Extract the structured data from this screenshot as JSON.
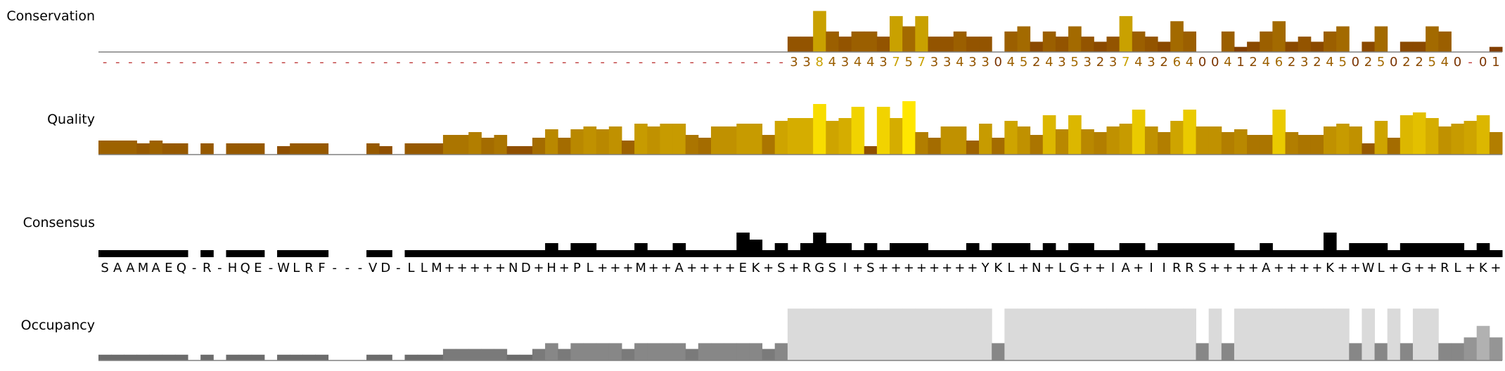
{
  "rows": {
    "conservation_label": "Conservation",
    "quality_label": "Quality",
    "consensus_label": "Consensus",
    "occupancy_label": "Occupancy"
  },
  "colors": {
    "conservation_low": "#7a3300",
    "conservation_mid": "#a36a00",
    "conservation_high": "#c9a100",
    "quality_low": "#7a3300",
    "quality_high": "#ffe600",
    "conservation_dash": "#c04040",
    "consensus_bar": "#000000",
    "occupancy_dark": "#5e5e5e",
    "occupancy_light": "#dadada",
    "baseline": "#808080"
  },
  "columns": [
    {
      "c": "-",
      "s": "S",
      "q": 5,
      "cons": 2,
      "o": 2
    },
    {
      "c": "-",
      "s": "A",
      "q": 5,
      "cons": 2,
      "o": 2
    },
    {
      "c": "-",
      "s": "A",
      "q": 5,
      "cons": 2,
      "o": 2
    },
    {
      "c": "-",
      "s": "M",
      "q": 4,
      "cons": 2,
      "o": 2
    },
    {
      "c": "-",
      "s": "A",
      "q": 5,
      "cons": 2,
      "o": 2
    },
    {
      "c": "-",
      "s": "E",
      "q": 4,
      "cons": 2,
      "o": 2
    },
    {
      "c": "-",
      "s": "Q",
      "q": 4,
      "cons": 2,
      "o": 2
    },
    {
      "c": "-",
      "s": "-",
      "q": 0,
      "cons": 0,
      "o": 0
    },
    {
      "c": "-",
      "s": "R",
      "q": 4,
      "cons": 2,
      "o": 2
    },
    {
      "c": "-",
      "s": "-",
      "q": 0,
      "cons": 0,
      "o": 0
    },
    {
      "c": "-",
      "s": "H",
      "q": 4,
      "cons": 2,
      "o": 2
    },
    {
      "c": "-",
      "s": "Q",
      "q": 4,
      "cons": 2,
      "o": 2
    },
    {
      "c": "-",
      "s": "E",
      "q": 4,
      "cons": 2,
      "o": 2
    },
    {
      "c": "-",
      "s": "-",
      "q": 0,
      "cons": 0,
      "o": 0
    },
    {
      "c": "-",
      "s": "W",
      "q": 3,
      "cons": 2,
      "o": 2
    },
    {
      "c": "-",
      "s": "L",
      "q": 4,
      "cons": 2,
      "o": 2
    },
    {
      "c": "-",
      "s": "R",
      "q": 4,
      "cons": 2,
      "o": 2
    },
    {
      "c": "-",
      "s": "F",
      "q": 4,
      "cons": 2,
      "o": 2
    },
    {
      "c": "-",
      "s": "-",
      "q": 0,
      "cons": 0,
      "o": 0
    },
    {
      "c": "-",
      "s": "-",
      "q": 0,
      "cons": 0,
      "o": 0
    },
    {
      "c": "-",
      "s": "-",
      "q": 0,
      "cons": 0,
      "o": 0
    },
    {
      "c": "-",
      "s": "V",
      "q": 4,
      "cons": 2,
      "o": 2
    },
    {
      "c": "-",
      "s": "D",
      "q": 3,
      "cons": 2,
      "o": 2
    },
    {
      "c": "-",
      "s": "-",
      "q": 0,
      "cons": 0,
      "o": 0
    },
    {
      "c": "-",
      "s": "L",
      "q": 4,
      "cons": 2,
      "o": 2
    },
    {
      "c": "-",
      "s": "L",
      "q": 4,
      "cons": 2,
      "o": 2
    },
    {
      "c": "-",
      "s": "M",
      "q": 4,
      "cons": 2,
      "o": 2
    },
    {
      "c": "-",
      "s": "+",
      "q": 7,
      "cons": 2,
      "o": 4
    },
    {
      "c": "-",
      "s": "+",
      "q": 7,
      "cons": 2,
      "o": 4
    },
    {
      "c": "-",
      "s": "+",
      "q": 8,
      "cons": 2,
      "o": 4
    },
    {
      "c": "-",
      "s": "+",
      "q": 6,
      "cons": 2,
      "o": 4
    },
    {
      "c": "-",
      "s": "+",
      "q": 7,
      "cons": 2,
      "o": 4
    },
    {
      "c": "-",
      "s": "N",
      "q": 3,
      "cons": 2,
      "o": 2
    },
    {
      "c": "-",
      "s": "D",
      "q": 3,
      "cons": 2,
      "o": 2
    },
    {
      "c": "-",
      "s": "+",
      "q": 6,
      "cons": 2,
      "o": 4
    },
    {
      "c": "-",
      "s": "H",
      "q": 9,
      "cons": 4,
      "o": 6
    },
    {
      "c": "-",
      "s": "+",
      "q": 6,
      "cons": 2,
      "o": 4
    },
    {
      "c": "-",
      "s": "P",
      "q": 9,
      "cons": 4,
      "o": 6
    },
    {
      "c": "-",
      "s": "L",
      "q": 10,
      "cons": 4,
      "o": 6
    },
    {
      "c": "-",
      "s": "+",
      "q": 9,
      "cons": 2,
      "o": 6
    },
    {
      "c": "-",
      "s": "+",
      "q": 10,
      "cons": 2,
      "o": 6
    },
    {
      "c": "-",
      "s": "+",
      "q": 5,
      "cons": 2,
      "o": 4
    },
    {
      "c": "-",
      "s": "M",
      "q": 11,
      "cons": 4,
      "o": 6
    },
    {
      "c": "-",
      "s": "+",
      "q": 10,
      "cons": 2,
      "o": 6
    },
    {
      "c": "-",
      "s": "+",
      "q": 11,
      "cons": 2,
      "o": 6
    },
    {
      "c": "-",
      "s": "A",
      "q": 11,
      "cons": 4,
      "o": 6
    },
    {
      "c": "-",
      "s": "+",
      "q": 7,
      "cons": 2,
      "o": 4
    },
    {
      "c": "-",
      "s": "+",
      "q": 6,
      "cons": 2,
      "o": 6
    },
    {
      "c": "-",
      "s": "+",
      "q": 10,
      "cons": 2,
      "o": 6
    },
    {
      "c": "-",
      "s": "+",
      "q": 10,
      "cons": 2,
      "o": 6
    },
    {
      "c": "-",
      "s": "E",
      "q": 11,
      "cons": 7,
      "o": 6
    },
    {
      "c": "-",
      "s": "K",
      "q": 11,
      "cons": 5,
      "o": 6
    },
    {
      "c": "-",
      "s": "+",
      "q": 7,
      "cons": 2,
      "o": 4
    },
    {
      "c": "-",
      "s": "S",
      "q": 12,
      "cons": 4,
      "o": 6
    },
    {
      "c": "3",
      "s": "+",
      "q": 13,
      "cons": 2,
      "o": 18
    },
    {
      "c": "3",
      "s": "R",
      "q": 13,
      "cons": 4,
      "o": 18
    },
    {
      "c": "8",
      "s": "G",
      "q": 18,
      "cons": 7,
      "o": 18
    },
    {
      "c": "4",
      "s": "S",
      "q": 12,
      "cons": 4,
      "o": 18
    },
    {
      "c": "3",
      "s": "I",
      "q": 13,
      "cons": 4,
      "o": 18
    },
    {
      "c": "4",
      "s": "+",
      "q": 17,
      "cons": 2,
      "o": 18
    },
    {
      "c": "4",
      "s": "S",
      "q": 3,
      "cons": 4,
      "o": 18
    },
    {
      "c": "3",
      "s": "+",
      "q": 17,
      "cons": 2,
      "o": 18
    },
    {
      "c": "7",
      "s": "+",
      "q": 13,
      "cons": 4,
      "o": 18
    },
    {
      "c": "5",
      "s": "+",
      "q": 19,
      "cons": 4,
      "o": 18
    },
    {
      "c": "7",
      "s": "+",
      "q": 8,
      "cons": 4,
      "o": 18
    },
    {
      "c": "3",
      "s": "+",
      "q": 6,
      "cons": 2,
      "o": 18
    },
    {
      "c": "3",
      "s": "+",
      "q": 10,
      "cons": 2,
      "o": 18
    },
    {
      "c": "4",
      "s": "+",
      "q": 10,
      "cons": 2,
      "o": 18
    },
    {
      "c": "3",
      "s": "+",
      "q": 5,
      "cons": 4,
      "o": 18
    },
    {
      "c": "3",
      "s": "Y",
      "q": 11,
      "cons": 2,
      "o": 18
    },
    {
      "c": "0",
      "s": "K",
      "q": 6,
      "cons": 4,
      "o": 6
    },
    {
      "c": "4",
      "s": "L",
      "q": 12,
      "cons": 4,
      "o": 18
    },
    {
      "c": "5",
      "s": "+",
      "q": 10,
      "cons": 4,
      "o": 18
    },
    {
      "c": "2",
      "s": "N",
      "q": 7,
      "cons": 2,
      "o": 18
    },
    {
      "c": "4",
      "s": "+",
      "q": 14,
      "cons": 4,
      "o": 18
    },
    {
      "c": "3",
      "s": "L",
      "q": 9,
      "cons": 2,
      "o": 18
    },
    {
      "c": "5",
      "s": "G",
      "q": 14,
      "cons": 4,
      "o": 18
    },
    {
      "c": "3",
      "s": "+",
      "q": 9,
      "cons": 4,
      "o": 18
    },
    {
      "c": "2",
      "s": "+",
      "q": 8,
      "cons": 2,
      "o": 18
    },
    {
      "c": "3",
      "s": "I",
      "q": 10,
      "cons": 2,
      "o": 18
    },
    {
      "c": "7",
      "s": "A",
      "q": 11,
      "cons": 4,
      "o": 18
    },
    {
      "c": "4",
      "s": "+",
      "q": 16,
      "cons": 4,
      "o": 18
    },
    {
      "c": "3",
      "s": "I",
      "q": 10,
      "cons": 2,
      "o": 18
    },
    {
      "c": "2",
      "s": "I",
      "q": 8,
      "cons": 4,
      "o": 18
    },
    {
      "c": "6",
      "s": "R",
      "q": 12,
      "cons": 4,
      "o": 18
    },
    {
      "c": "4",
      "s": "R",
      "q": 16,
      "cons": 4,
      "o": 18
    },
    {
      "c": "0",
      "s": "S",
      "q": 10,
      "cons": 4,
      "o": 6
    },
    {
      "c": "0",
      "s": "+",
      "q": 10,
      "cons": 4,
      "o": 18
    },
    {
      "c": "4",
      "s": "+",
      "q": 8,
      "cons": 4,
      "o": 6
    },
    {
      "c": "1",
      "s": "+",
      "q": 9,
      "cons": 2,
      "o": 18
    },
    {
      "c": "2",
      "s": "+",
      "q": 7,
      "cons": 2,
      "o": 18
    },
    {
      "c": "4",
      "s": "A",
      "q": 7,
      "cons": 4,
      "o": 18
    },
    {
      "c": "6",
      "s": "+",
      "q": 16,
      "cons": 2,
      "o": 18
    },
    {
      "c": "2",
      "s": "+",
      "q": 8,
      "cons": 2,
      "o": 18
    },
    {
      "c": "3",
      "s": "+",
      "q": 7,
      "cons": 2,
      "o": 18
    },
    {
      "c": "2",
      "s": "+",
      "q": 7,
      "cons": 2,
      "o": 18
    },
    {
      "c": "4",
      "s": "K",
      "q": 10,
      "cons": 7,
      "o": 18
    },
    {
      "c": "5",
      "s": "+",
      "q": 11,
      "cons": 2,
      "o": 18
    },
    {
      "c": "0",
      "s": "+",
      "q": 10,
      "cons": 4,
      "o": 6
    },
    {
      "c": "2",
      "s": "W",
      "q": 4,
      "cons": 4,
      "o": 18
    },
    {
      "c": "5",
      "s": "L",
      "q": 12,
      "cons": 4,
      "o": 6
    },
    {
      "c": "0",
      "s": "+",
      "q": 6,
      "cons": 2,
      "o": 18
    },
    {
      "c": "2",
      "s": "G",
      "q": 14,
      "cons": 4,
      "o": 6
    },
    {
      "c": "2",
      "s": "+",
      "q": 15,
      "cons": 4,
      "o": 18
    },
    {
      "c": "5",
      "s": "+",
      "q": 13,
      "cons": 4,
      "o": 18
    },
    {
      "c": "4",
      "s": "R",
      "q": 10,
      "cons": 4,
      "o": 6
    },
    {
      "c": "0",
      "s": "L",
      "q": 11,
      "cons": 4,
      "o": 6
    },
    {
      "c": "-",
      "s": "+",
      "q": 12,
      "cons": 2,
      "o": 8
    },
    {
      "c": "0",
      "s": "K",
      "q": 14,
      "cons": 4,
      "o": 12
    },
    {
      "c": "1",
      "s": "+",
      "q": 8,
      "cons": 2,
      "o": 8
    }
  ],
  "conservation_heights": [
    0,
    0,
    0,
    0,
    0,
    0,
    0,
    0,
    0,
    0,
    0,
    0,
    0,
    0,
    0,
    0,
    0,
    0,
    0,
    0,
    0,
    0,
    0,
    0,
    0,
    0,
    0,
    0,
    0,
    0,
    0,
    0,
    0,
    0,
    0,
    0,
    0,
    0,
    0,
    0,
    0,
    0,
    0,
    0,
    0,
    0,
    0,
    0,
    0,
    0,
    0,
    0,
    0,
    0,
    3,
    3,
    8,
    4,
    3,
    4,
    4,
    3,
    7,
    5,
    7,
    3,
    3,
    4,
    3,
    3,
    0,
    4,
    5,
    2,
    4,
    3,
    5,
    3,
    2,
    3,
    7,
    4,
    3,
    2,
    6,
    4,
    0,
    0,
    4,
    1,
    2,
    4,
    6,
    2,
    3,
    2,
    4,
    5,
    0,
    2,
    5,
    0,
    2,
    2,
    5,
    4,
    0,
    0,
    0,
    1
  ]
}
